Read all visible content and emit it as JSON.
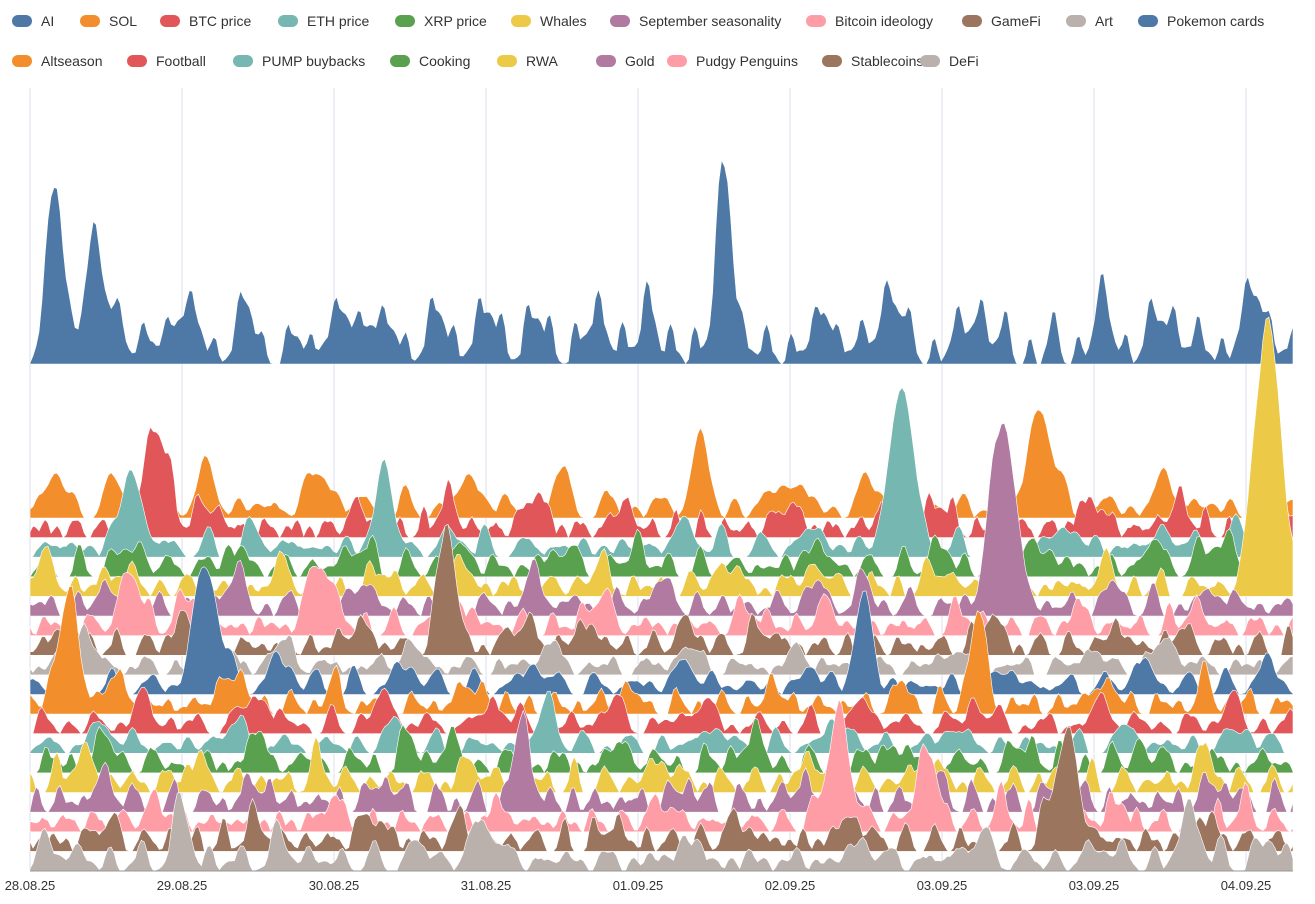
{
  "chart_data": {
    "type": "area",
    "subtype": "ridgeline",
    "title": "",
    "xlabel": "",
    "ylabel": "",
    "grid": true,
    "legend_position": "top",
    "x_ticks": [
      "28.08.25",
      "29.08.25",
      "30.08.25",
      "31.08.25",
      "01.09.25",
      "02.09.25",
      "03.09.25",
      "03.09.25",
      "04.09.25"
    ],
    "series": [
      {
        "name": "AI",
        "color": "#4e79a7",
        "peaks": [
          [
            0.02,
            0.72
          ],
          [
            0.05,
            0.45
          ],
          [
            0.07,
            0.15
          ],
          [
            0.12,
            0.2
          ],
          [
            0.17,
            0.15
          ],
          [
            0.24,
            0.13
          ],
          [
            0.27,
            0.17
          ],
          [
            0.32,
            0.15
          ],
          [
            0.36,
            0.15
          ],
          [
            0.4,
            0.14
          ],
          [
            0.45,
            0.15
          ],
          [
            0.49,
            0.2
          ],
          [
            0.55,
            0.8
          ],
          [
            0.63,
            0.2
          ],
          [
            0.68,
            0.26
          ],
          [
            0.75,
            0.19
          ],
          [
            0.85,
            0.17
          ],
          [
            0.9,
            0.17
          ],
          [
            0.97,
            0.24
          ]
        ],
        "peak_labels": []
      },
      {
        "name": "SOL",
        "color": "#f28e2b",
        "peaks": [
          [
            0.02,
            0.18
          ],
          [
            0.07,
            0.15
          ],
          [
            0.14,
            0.2
          ],
          [
            0.23,
            0.2
          ],
          [
            0.35,
            0.18
          ],
          [
            0.42,
            0.19
          ],
          [
            0.53,
            0.4
          ],
          [
            0.6,
            0.18
          ],
          [
            0.67,
            0.16
          ],
          [
            0.8,
            0.63
          ],
          [
            0.9,
            0.15
          ],
          [
            0.99,
            0.12
          ]
        ]
      },
      {
        "name": "BTC price",
        "color": "#e15759",
        "peaks": [
          [
            0.1,
            0.62
          ],
          [
            0.14,
            0.15
          ],
          [
            0.26,
            0.14
          ],
          [
            0.33,
            0.19
          ],
          [
            0.4,
            0.21
          ],
          [
            0.47,
            0.17
          ],
          [
            0.6,
            0.14
          ],
          [
            0.68,
            0.15
          ],
          [
            0.72,
            0.18
          ],
          [
            0.84,
            0.17
          ],
          [
            0.91,
            0.16
          ],
          [
            0.99,
            0.17
          ]
        ]
      },
      {
        "name": "ETH price",
        "color": "#76b7b2",
        "peaks": [
          [
            0.08,
            0.45
          ],
          [
            0.18,
            0.1
          ],
          [
            0.28,
            0.5
          ],
          [
            0.34,
            0.1
          ],
          [
            0.52,
            0.12
          ],
          [
            0.62,
            0.1
          ],
          [
            0.69,
            0.95
          ],
          [
            0.82,
            0.12
          ],
          [
            0.9,
            0.1
          ],
          [
            0.96,
            0.1
          ]
        ]
      },
      {
        "name": "XRP price",
        "color": "#59a14f",
        "peaks": [
          [
            0.08,
            0.12
          ],
          [
            0.16,
            0.13
          ],
          [
            0.26,
            0.14
          ],
          [
            0.34,
            0.12
          ],
          [
            0.42,
            0.12
          ],
          [
            0.48,
            0.15
          ],
          [
            0.62,
            0.13
          ],
          [
            0.72,
            0.12
          ],
          [
            0.8,
            0.14
          ],
          [
            0.89,
            0.16
          ],
          [
            0.94,
            0.18
          ]
        ]
      },
      {
        "name": "Whales",
        "color": "#edc948",
        "peaks": [
          [
            0.01,
            0.15
          ],
          [
            0.07,
            0.12
          ],
          [
            0.2,
            0.14
          ],
          [
            0.28,
            0.13
          ],
          [
            0.34,
            0.13
          ],
          [
            0.45,
            0.12
          ],
          [
            0.55,
            0.13
          ],
          [
            0.62,
            0.12
          ],
          [
            0.72,
            0.12
          ],
          [
            0.85,
            0.13
          ],
          [
            0.98,
            1.6
          ]
        ]
      },
      {
        "name": "September seasonality",
        "color": "#b07aa1",
        "peaks": [
          [
            0.06,
            0.12
          ],
          [
            0.16,
            0.18
          ],
          [
            0.26,
            0.14
          ],
          [
            0.4,
            0.16
          ],
          [
            0.5,
            0.14
          ],
          [
            0.62,
            0.12
          ],
          [
            0.66,
            0.12
          ],
          [
            0.77,
            1.1
          ],
          [
            0.86,
            0.13
          ],
          [
            0.94,
            0.12
          ]
        ]
      },
      {
        "name": "Bitcoin ideology",
        "color": "#ff9da7",
        "peaks": [
          [
            0.08,
            0.3
          ],
          [
            0.13,
            0.22
          ],
          [
            0.23,
            0.4
          ],
          [
            0.34,
            0.13
          ],
          [
            0.45,
            0.18
          ],
          [
            0.57,
            0.13
          ],
          [
            0.63,
            0.11
          ],
          [
            0.74,
            0.11
          ],
          [
            0.83,
            0.11
          ],
          [
            0.92,
            0.13
          ]
        ]
      },
      {
        "name": "GameFi",
        "color": "#9c755f",
        "peaks": [
          [
            0.03,
            0.13
          ],
          [
            0.12,
            0.15
          ],
          [
            0.26,
            0.13
          ],
          [
            0.33,
            0.78
          ],
          [
            0.39,
            0.15
          ],
          [
            0.44,
            0.13
          ],
          [
            0.52,
            0.13
          ],
          [
            0.58,
            0.12
          ],
          [
            0.76,
            0.2
          ],
          [
            0.86,
            0.12
          ],
          [
            0.91,
            0.12
          ]
        ]
      },
      {
        "name": "Art",
        "color": "#bab0ac",
        "peaks": [
          [
            0.04,
            0.22
          ],
          [
            0.15,
            0.14
          ],
          [
            0.2,
            0.14
          ],
          [
            0.3,
            0.12
          ],
          [
            0.41,
            0.13
          ],
          [
            0.52,
            0.11
          ],
          [
            0.61,
            0.12
          ],
          [
            0.73,
            0.12
          ],
          [
            0.84,
            0.12
          ],
          [
            0.9,
            0.16
          ]
        ]
      },
      {
        "name": "Pokemon cards",
        "color": "#4e79a7",
        "peaks": [
          [
            0.14,
            0.72
          ],
          [
            0.2,
            0.15
          ],
          [
            0.3,
            0.12
          ],
          [
            0.4,
            0.14
          ],
          [
            0.52,
            0.12
          ],
          [
            0.62,
            0.11
          ],
          [
            0.66,
            0.54
          ],
          [
            0.77,
            0.12
          ],
          [
            0.88,
            0.12
          ],
          [
            0.98,
            0.12
          ]
        ]
      },
      {
        "name": "Altseason",
        "color": "#f28e2b",
        "peaks": [
          [
            0.03,
            0.62
          ],
          [
            0.07,
            0.15
          ],
          [
            0.16,
            0.2
          ],
          [
            0.24,
            0.13
          ],
          [
            0.35,
            0.12
          ],
          [
            0.47,
            0.12
          ],
          [
            0.59,
            0.13
          ],
          [
            0.69,
            0.11
          ],
          [
            0.75,
            0.55
          ],
          [
            0.85,
            0.13
          ],
          [
            0.93,
            0.15
          ]
        ]
      },
      {
        "name": "Football",
        "color": "#e15759",
        "peaks": [
          [
            0.09,
            0.14
          ],
          [
            0.18,
            0.18
          ],
          [
            0.28,
            0.15
          ],
          [
            0.37,
            0.14
          ],
          [
            0.46,
            0.13
          ],
          [
            0.53,
            0.13
          ],
          [
            0.66,
            0.12
          ],
          [
            0.75,
            0.13
          ],
          [
            0.85,
            0.12
          ],
          [
            0.95,
            0.14
          ]
        ]
      },
      {
        "name": "PUMP buybacks",
        "color": "#76b7b2",
        "peaks": [
          [
            0.06,
            0.12
          ],
          [
            0.16,
            0.13
          ],
          [
            0.29,
            0.14
          ],
          [
            0.41,
            0.27
          ],
          [
            0.54,
            0.12
          ],
          [
            0.64,
            0.13
          ],
          [
            0.73,
            0.13
          ],
          [
            0.87,
            0.12
          ],
          [
            0.96,
            0.12
          ]
        ]
      },
      {
        "name": "Cooking",
        "color": "#59a14f",
        "peaks": [
          [
            0.06,
            0.13
          ],
          [
            0.18,
            0.14
          ],
          [
            0.3,
            0.15
          ],
          [
            0.33,
            0.14
          ],
          [
            0.47,
            0.12
          ],
          [
            0.57,
            0.16
          ],
          [
            0.68,
            0.12
          ],
          [
            0.79,
            0.12
          ],
          [
            0.88,
            0.13
          ]
        ]
      },
      {
        "name": "RWA",
        "color": "#edc948",
        "peaks": [
          [
            0.04,
            0.16
          ],
          [
            0.13,
            0.13
          ],
          [
            0.23,
            0.14
          ],
          [
            0.35,
            0.12
          ],
          [
            0.5,
            0.12
          ],
          [
            0.62,
            0.14
          ],
          [
            0.71,
            0.12
          ],
          [
            0.82,
            0.13
          ],
          [
            0.93,
            0.19
          ]
        ]
      },
      {
        "name": "Gold",
        "color": "#b07aa1",
        "peaks": [
          [
            0.06,
            0.14
          ],
          [
            0.18,
            0.12
          ],
          [
            0.28,
            0.13
          ],
          [
            0.39,
            0.52
          ],
          [
            0.52,
            0.12
          ],
          [
            0.61,
            0.14
          ],
          [
            0.72,
            0.13
          ],
          [
            0.82,
            0.12
          ],
          [
            0.94,
            0.12
          ]
        ]
      },
      {
        "name": "Pudgy Penguins",
        "color": "#ff9da7",
        "peaks": [
          [
            0.1,
            0.12
          ],
          [
            0.24,
            0.15
          ],
          [
            0.37,
            0.12
          ],
          [
            0.5,
            0.12
          ],
          [
            0.64,
            0.62
          ],
          [
            0.71,
            0.45
          ],
          [
            0.77,
            0.12
          ],
          [
            0.86,
            0.13
          ],
          [
            0.96,
            0.12
          ]
        ]
      },
      {
        "name": "Stablecoins",
        "color": "#9c755f",
        "peaks": [
          [
            0.06,
            0.13
          ],
          [
            0.18,
            0.12
          ],
          [
            0.27,
            0.16
          ],
          [
            0.34,
            0.14
          ],
          [
            0.46,
            0.12
          ],
          [
            0.56,
            0.13
          ],
          [
            0.65,
            0.14
          ],
          [
            0.82,
            0.62
          ],
          [
            0.93,
            0.14
          ]
        ]
      },
      {
        "name": "DeFi",
        "color": "#bab0ac",
        "peaks": [
          [
            0.02,
            0.1
          ],
          [
            0.12,
            0.3
          ],
          [
            0.2,
            0.12
          ],
          [
            0.31,
            0.1
          ],
          [
            0.36,
            0.25
          ],
          [
            0.52,
            0.16
          ],
          [
            0.66,
            0.12
          ],
          [
            0.75,
            0.14
          ],
          [
            0.85,
            0.12
          ],
          [
            0.92,
            0.3
          ],
          [
            0.98,
            0.12
          ]
        ]
      }
    ]
  }
}
